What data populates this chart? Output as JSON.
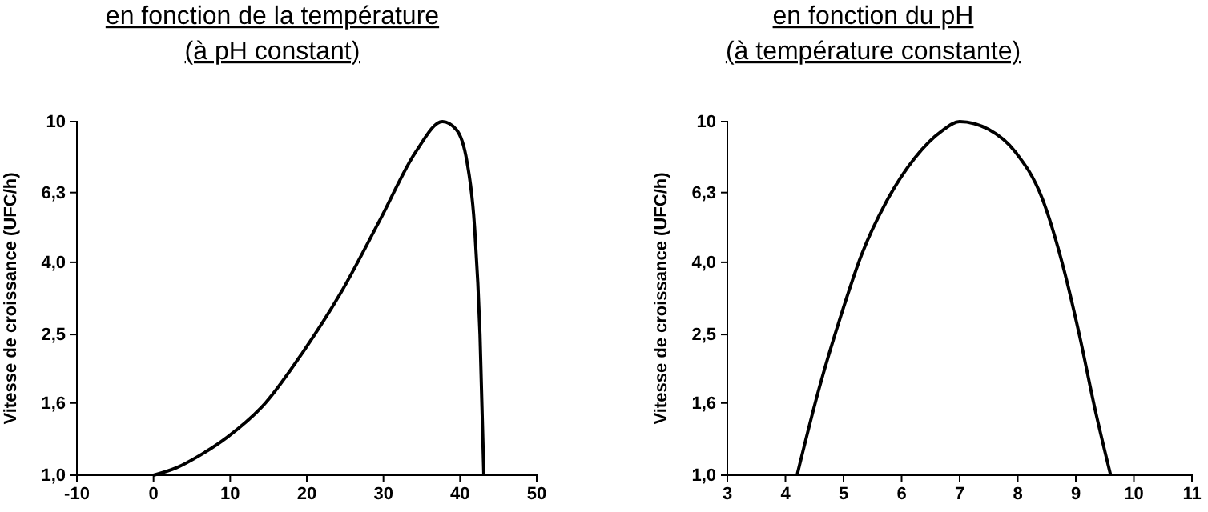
{
  "chart_data": [
    {
      "type": "line",
      "title": "en fonction de la température",
      "subtitle": "(à pH constant)",
      "ylabel": "Vitesse de croissance (UFC/h)",
      "log": "y",
      "color": "#000000",
      "marker": "none",
      "line_style": "solid",
      "grid": false,
      "x": [
        0,
        3,
        6.1,
        9.6,
        14.6,
        19.5,
        24.4,
        29.6,
        34.2,
        37.7,
        39.5,
        40.9,
        41.9,
        42.6,
        43.1
      ],
      "values": [
        1.0,
        1.05,
        1.14,
        1.28,
        1.6,
        2.23,
        3.27,
        5.3,
        8.2,
        10,
        9.5,
        7.7,
        5.0,
        2.5,
        1.0
      ],
      "xlim": [
        -10,
        50
      ],
      "xticks": [
        -10,
        0,
        10,
        20,
        30,
        40,
        50
      ],
      "ylim": [
        1,
        10
      ],
      "yticks": [
        {
          "value": 1,
          "label": "1,0"
        },
        {
          "value": 1.6,
          "label": "1,6"
        },
        {
          "value": 2.5,
          "label": "2,5"
        },
        {
          "value": 4,
          "label": "4,0"
        },
        {
          "value": 6.3,
          "label": "6,3"
        },
        10
      ]
    },
    {
      "type": "line",
      "title": "en fonction du pH",
      "subtitle": "(à température constante)",
      "ylabel": "Vitesse de croissance (UFC/h)",
      "log": "y",
      "color": "#000000",
      "marker": "none",
      "line_style": "solid",
      "grid": false,
      "x": [
        4.2,
        4.58,
        4.95,
        5.31,
        5.77,
        6.23,
        6.69,
        7.0,
        7.5,
        7.96,
        8.42,
        8.78,
        9.06,
        9.33,
        9.6
      ],
      "values": [
        1.0,
        1.76,
        2.81,
        4.2,
        6.07,
        7.9,
        9.4,
        10,
        9.5,
        8.2,
        6.07,
        3.9,
        2.5,
        1.54,
        1.0
      ],
      "xlim": [
        3,
        11
      ],
      "xticks": [
        3,
        4,
        5,
        6,
        7,
        8,
        9,
        10,
        11
      ],
      "ylim": [
        1,
        10
      ],
      "yticks": [
        {
          "value": 1,
          "label": "1,0"
        },
        {
          "value": 1.6,
          "label": "1,6"
        },
        {
          "value": 2.5,
          "label": "2,5"
        },
        {
          "value": 4,
          "label": "4,0"
        },
        {
          "value": 6.3,
          "label": "6,3"
        },
        10
      ]
    }
  ]
}
